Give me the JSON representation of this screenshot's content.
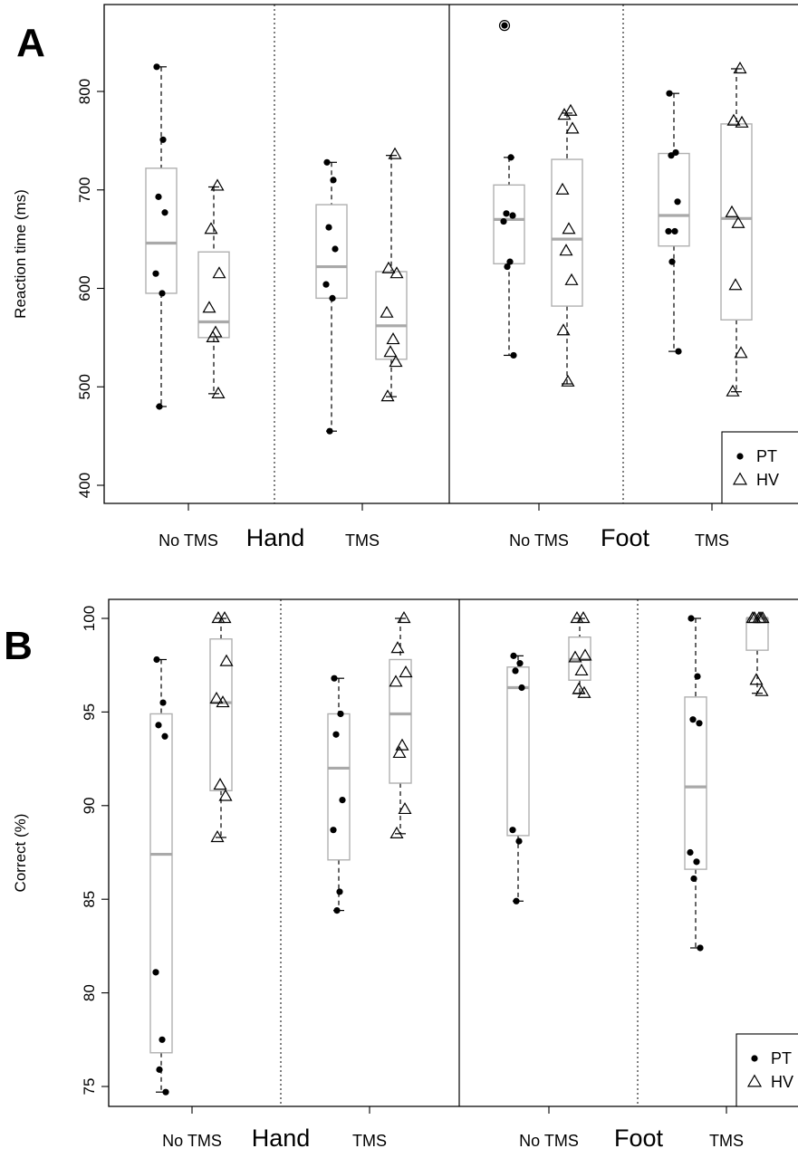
{
  "chart_data": [
    {
      "type": "box",
      "panel_label": "A",
      "ylabel": "Reaction time (ms)",
      "ylim": [
        380,
        880
      ],
      "yticks": [
        400,
        500,
        600,
        700,
        800
      ],
      "groups": [
        "Hand",
        "Foot"
      ],
      "conditions": [
        "No TMS",
        "TMS"
      ],
      "legend": {
        "position": "bottom-right",
        "entries": [
          {
            "symbol": "dot",
            "label": "PT"
          },
          {
            "symbol": "triangle",
            "label": "HV"
          }
        ]
      },
      "boxes": [
        {
          "group": "Hand",
          "condition": "No TMS",
          "series": "PT",
          "whisker_low": 480,
          "q1": 595,
          "median": 646,
          "q3": 722,
          "whisker_high": 825
        },
        {
          "group": "Hand",
          "condition": "No TMS",
          "series": "HV",
          "whisker_low": 493,
          "q1": 550,
          "median": 566,
          "q3": 637,
          "whisker_high": 703
        },
        {
          "group": "Hand",
          "condition": "TMS",
          "series": "PT",
          "whisker_low": 455,
          "q1": 590,
          "median": 622,
          "q3": 685,
          "whisker_high": 728
        },
        {
          "group": "Hand",
          "condition": "TMS",
          "series": "HV",
          "whisker_low": 490,
          "q1": 528,
          "median": 562,
          "q3": 617,
          "whisker_high": 735
        },
        {
          "group": "Foot",
          "condition": "No TMS",
          "series": "PT",
          "whisker_low": 532,
          "q1": 625,
          "median": 670,
          "q3": 705,
          "whisker_high": 733
        },
        {
          "group": "Foot",
          "condition": "No TMS",
          "series": "HV",
          "whisker_low": 503,
          "q1": 582,
          "median": 650,
          "q3": 731,
          "whisker_high": 778
        },
        {
          "group": "Foot",
          "condition": "TMS",
          "series": "PT",
          "whisker_low": 536,
          "q1": 643,
          "median": 674,
          "q3": 737,
          "whisker_high": 798
        },
        {
          "group": "Foot",
          "condition": "TMS",
          "series": "HV",
          "whisker_low": 495,
          "q1": 568,
          "median": 671,
          "q3": 767,
          "whisker_high": 823
        }
      ],
      "points": [
        {
          "group": "Hand",
          "condition": "No TMS",
          "series": "PT",
          "values": [
            825,
            751,
            693,
            677,
            615,
            595,
            480
          ]
        },
        {
          "group": "Hand",
          "condition": "No TMS",
          "series": "HV",
          "values": [
            704,
            660,
            615,
            580,
            555,
            550,
            493
          ]
        },
        {
          "group": "Hand",
          "condition": "TMS",
          "series": "PT",
          "values": [
            728,
            710,
            662,
            640,
            604,
            590,
            455
          ]
        },
        {
          "group": "Hand",
          "condition": "TMS",
          "series": "HV",
          "values": [
            736,
            620,
            615,
            575,
            548,
            535,
            525,
            490
          ]
        },
        {
          "group": "Foot",
          "condition": "No TMS",
          "series": "PT",
          "values": [
            867,
            733,
            676,
            674,
            668,
            627,
            622,
            532
          ]
        },
        {
          "group": "Foot",
          "condition": "No TMS",
          "series": "HV",
          "values": [
            780,
            776,
            762,
            700,
            660,
            638,
            608,
            557,
            505
          ]
        },
        {
          "group": "Foot",
          "condition": "TMS",
          "series": "PT",
          "values": [
            798,
            738,
            735,
            688,
            658,
            658,
            627,
            536
          ]
        },
        {
          "group": "Foot",
          "condition": "TMS",
          "series": "HV",
          "values": [
            823,
            770,
            768,
            677,
            666,
            603,
            534,
            495
          ]
        }
      ],
      "outliers": [
        {
          "group": "Foot",
          "condition": "No TMS",
          "series": "PT",
          "value": 867
        }
      ]
    },
    {
      "type": "box",
      "panel_label": "B",
      "ylabel": "Correct (%)",
      "ylim": [
        73.5,
        101
      ],
      "yticks": [
        75,
        80,
        85,
        90,
        95,
        100
      ],
      "groups": [
        "Hand",
        "Foot"
      ],
      "conditions": [
        "No TMS",
        "TMS"
      ],
      "legend": {
        "position": "bottom-right",
        "entries": [
          {
            "symbol": "dot",
            "label": "PT"
          },
          {
            "symbol": "triangle",
            "label": "HV"
          }
        ]
      },
      "boxes": [
        {
          "group": "Hand",
          "condition": "No TMS",
          "series": "PT",
          "whisker_low": 74.7,
          "q1": 76.8,
          "median": 87.4,
          "q3": 94.9,
          "whisker_high": 97.8
        },
        {
          "group": "Hand",
          "condition": "No TMS",
          "series": "HV",
          "whisker_low": 88.3,
          "q1": 90.8,
          "median": 95.5,
          "q3": 98.9,
          "whisker_high": 100
        },
        {
          "group": "Hand",
          "condition": "TMS",
          "series": "PT",
          "whisker_low": 84.4,
          "q1": 87.1,
          "median": 92.0,
          "q3": 94.9,
          "whisker_high": 96.8
        },
        {
          "group": "Hand",
          "condition": "TMS",
          "series": "HV",
          "whisker_low": 88.5,
          "q1": 91.2,
          "median": 94.9,
          "q3": 97.8,
          "whisker_high": 100
        },
        {
          "group": "Foot",
          "condition": "No TMS",
          "series": "PT",
          "whisker_low": 84.9,
          "q1": 88.4,
          "median": 96.3,
          "q3": 97.4,
          "whisker_high": 98.0
        },
        {
          "group": "Foot",
          "condition": "No TMS",
          "series": "HV",
          "whisker_low": 96.0,
          "q1": 96.7,
          "median": 97.8,
          "q3": 99.0,
          "whisker_high": 100
        },
        {
          "group": "Foot",
          "condition": "TMS",
          "series": "PT",
          "whisker_low": 82.4,
          "q1": 86.6,
          "median": 91.0,
          "q3": 95.8,
          "whisker_high": 100
        },
        {
          "group": "Foot",
          "condition": "TMS",
          "series": "HV",
          "whisker_low": 96.0,
          "q1": 98.3,
          "median": 100,
          "q3": 100,
          "whisker_high": 100
        }
      ],
      "points": [
        {
          "group": "Hand",
          "condition": "No TMS",
          "series": "PT",
          "values": [
            97.8,
            95.5,
            94.3,
            93.7,
            81.1,
            77.5,
            75.9,
            74.7
          ]
        },
        {
          "group": "Hand",
          "condition": "No TMS",
          "series": "HV",
          "values": [
            100,
            100,
            97.7,
            95.7,
            95.5,
            91.1,
            90.5,
            88.3
          ]
        },
        {
          "group": "Hand",
          "condition": "TMS",
          "series": "PT",
          "values": [
            96.8,
            94.9,
            93.8,
            90.3,
            88.7,
            85.4,
            84.4
          ]
        },
        {
          "group": "Hand",
          "condition": "TMS",
          "series": "HV",
          "values": [
            100,
            98.4,
            97.1,
            96.6,
            93.2,
            92.8,
            89.8,
            88.5
          ]
        },
        {
          "group": "Foot",
          "condition": "No TMS",
          "series": "PT",
          "values": [
            98.0,
            97.6,
            97.2,
            96.3,
            88.7,
            88.1,
            84.9
          ]
        },
        {
          "group": "Foot",
          "condition": "No TMS",
          "series": "HV",
          "values": [
            100,
            100,
            98.0,
            97.9,
            97.2,
            96.2,
            96.0
          ]
        },
        {
          "group": "Foot",
          "condition": "TMS",
          "series": "PT",
          "values": [
            100,
            96.9,
            94.6,
            94.4,
            87.5,
            87.0,
            86.1,
            82.4
          ]
        },
        {
          "group": "Foot",
          "condition": "TMS",
          "series": "HV",
          "values": [
            100,
            100,
            100,
            100,
            100,
            96.7,
            96.1
          ]
        }
      ],
      "outliers": []
    }
  ]
}
